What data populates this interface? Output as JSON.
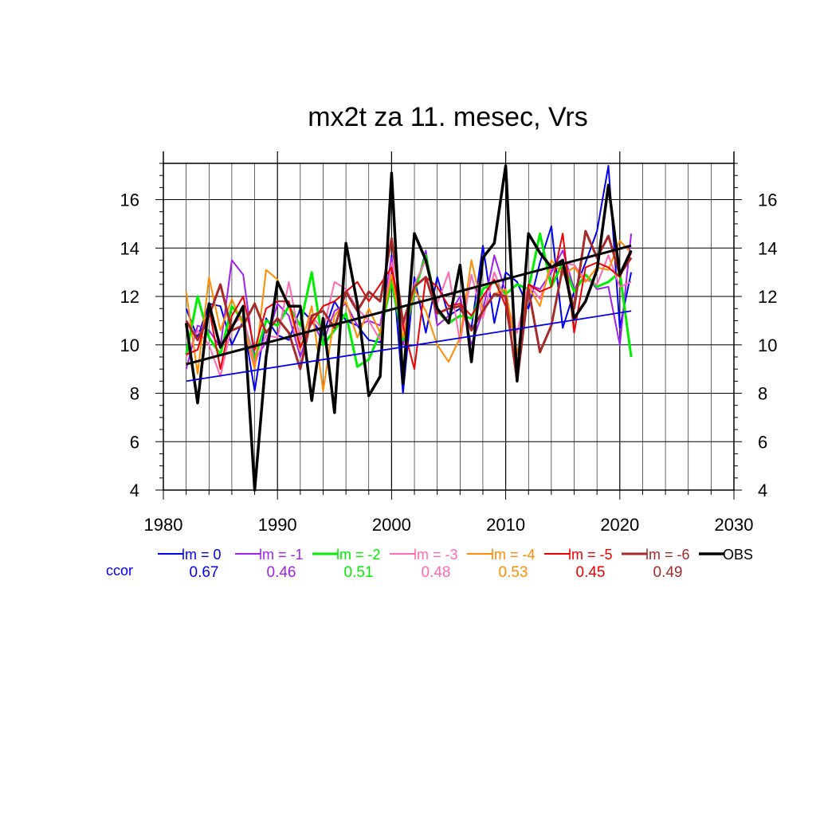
{
  "chart_data": {
    "type": "line",
    "title": "mx2t za 11. mesec, Vrs",
    "xlim": [
      1980,
      2030
    ],
    "ylim": [
      4,
      17.5
    ],
    "x_ticks": [
      "1980",
      "1990",
      "2000",
      "2010",
      "2020",
      "2030"
    ],
    "y_ticks": [
      "4",
      "6",
      "8",
      "10",
      "12",
      "14",
      "16"
    ],
    "grid": true,
    "legend_position": "bottom",
    "ccor_label": "ccor",
    "x": [
      1982,
      1983,
      1984,
      1985,
      1986,
      1987,
      1988,
      1989,
      1990,
      1991,
      1992,
      1993,
      1994,
      1995,
      1996,
      1997,
      1998,
      1999,
      2000,
      2001,
      2002,
      2003,
      2004,
      2005,
      2006,
      2007,
      2008,
      2009,
      2010,
      2011,
      2012,
      2013,
      2014,
      2015,
      2016,
      2017,
      2018,
      2019,
      2020,
      2021
    ],
    "series": [
      {
        "name": "lm = 0",
        "ccor": "0.67",
        "color": "#0000ee",
        "width": 2,
        "values": [
          11.5,
          10.3,
          11.7,
          11.6,
          10.0,
          11.0,
          8.1,
          11.1,
          10.4,
          10.2,
          11.5,
          11.0,
          10.4,
          11.8,
          11.0,
          10.8,
          10.2,
          10.1,
          13.7,
          8.0,
          12.8,
          10.5,
          12.8,
          11.2,
          11.5,
          10.7,
          14.1,
          10.9,
          13.0,
          12.6,
          11.5,
          13.4,
          14.9,
          10.7,
          12.2,
          13.4,
          14.7,
          17.4,
          10.7,
          13.0
        ],
        "trend": [
          8.5,
          11.4
        ]
      },
      {
        "name": "lm = -1",
        "ccor": "0.46",
        "color": "#a020f0",
        "width": 2,
        "values": [
          9.0,
          10.8,
          10.6,
          9.9,
          13.5,
          12.9,
          9.4,
          10.1,
          11.7,
          11.2,
          9.5,
          11.0,
          10.1,
          11.4,
          11.7,
          10.8,
          11.0,
          10.8,
          13.6,
          10.0,
          12.1,
          13.9,
          10.8,
          11.2,
          12.0,
          10.0,
          11.4,
          13.7,
          12.2,
          9.6,
          12.5,
          12.3,
          13.0,
          13.9,
          12.3,
          12.9,
          12.3,
          12.4,
          10.0,
          14.6
        ]
      },
      {
        "name": "lm = -2",
        "ccor": "0.51",
        "color": "#00ee00",
        "width": 3,
        "values": [
          9.6,
          12.0,
          10.3,
          9.6,
          11.6,
          11.0,
          9.4,
          11.0,
          10.8,
          11.6,
          10.8,
          13.0,
          10.0,
          10.6,
          11.3,
          9.1,
          9.4,
          10.5,
          12.6,
          10.2,
          12.2,
          13.7,
          11.4,
          10.9,
          11.2,
          11.1,
          12.3,
          12.6,
          12.1,
          12.5,
          12.3,
          14.6,
          12.4,
          13.4,
          12.2,
          12.9,
          12.4,
          12.6,
          13.0,
          9.5
        ]
      },
      {
        "name": "lm = -3",
        "ccor": "0.48",
        "color": "#ff69b4",
        "width": 2,
        "values": [
          9.5,
          10.6,
          10.0,
          8.7,
          10.8,
          11.2,
          9.2,
          10.4,
          10.3,
          12.6,
          10.2,
          11.2,
          10.6,
          12.6,
          12.3,
          11.5,
          11.0,
          10.2,
          13.4,
          10.6,
          12.5,
          13.5,
          11.7,
          13.0,
          10.1,
          12.9,
          11.1,
          13.0,
          11.8,
          10.5,
          12.5,
          11.9,
          13.2,
          13.4,
          13.3,
          12.7,
          12.5,
          13.7,
          12.4,
          12.6
        ]
      },
      {
        "name": "lm = -4",
        "ccor": "0.53",
        "color": "#ff8c00",
        "width": 2,
        "values": [
          12.2,
          8.8,
          12.8,
          10.6,
          11.9,
          10.8,
          9.0,
          13.1,
          12.7,
          11.6,
          9.8,
          11.6,
          8.1,
          11.2,
          11.8,
          10.3,
          11.5,
          10.5,
          12.9,
          10.3,
          12.3,
          11.4,
          10.0,
          9.3,
          10.3,
          13.5,
          11.4,
          12.1,
          12.3,
          9.6,
          12.4,
          11.6,
          13.5,
          12.9,
          13.2,
          12.6,
          13.2,
          13.1,
          14.3,
          13.8
        ]
      },
      {
        "name": "lm = -5",
        "ccor": "0.45",
        "color": "#ee0000",
        "width": 2,
        "values": [
          9.6,
          9.8,
          11.5,
          9.0,
          11.2,
          12.0,
          9.8,
          11.5,
          11.8,
          11.8,
          9.9,
          10.9,
          11.6,
          11.8,
          12.2,
          12.6,
          11.8,
          12.5,
          13.2,
          10.8,
          9.0,
          12.8,
          12.4,
          11.6,
          11.7,
          11.2,
          12.0,
          12.7,
          11.6,
          8.8,
          12.5,
          12.2,
          12.4,
          14.6,
          10.5,
          13.2,
          13.4,
          13.2,
          12.8,
          13.8
        ]
      },
      {
        "name": "lm = -6",
        "ccor": "0.49",
        "color": "#a52a2a",
        "width": 3,
        "values": [
          11.0,
          10.2,
          11.2,
          12.5,
          10.6,
          10.8,
          11.7,
          10.5,
          11.1,
          10.5,
          9.0,
          11.2,
          11.4,
          10.7,
          12.2,
          11.4,
          12.2,
          11.8,
          14.4,
          10.9,
          12.4,
          12.8,
          11.3,
          11.5,
          11.6,
          10.6,
          11.4,
          12.1,
          12.0,
          8.5,
          12.3,
          9.7,
          10.8,
          13.2,
          11.5,
          14.7,
          13.6,
          14.5,
          12.9,
          13.6
        ]
      },
      {
        "name": "OBS",
        "ccor": "",
        "color": "#000000",
        "width": 3.5,
        "values": [
          10.9,
          7.6,
          11.7,
          9.9,
          10.7,
          11.6,
          4.0,
          9.5,
          12.6,
          11.6,
          11.6,
          7.7,
          11.1,
          7.2,
          14.2,
          11.7,
          7.9,
          8.7,
          17.1,
          8.4,
          14.6,
          13.5,
          11.5,
          10.9,
          13.3,
          9.3,
          13.6,
          14.2,
          17.4,
          8.5,
          14.6,
          13.8,
          13.2,
          13.5,
          11.1,
          11.8,
          13.1,
          16.6,
          12.9,
          13.9
        ],
        "trend": [
          9.2,
          14.1
        ]
      }
    ]
  }
}
